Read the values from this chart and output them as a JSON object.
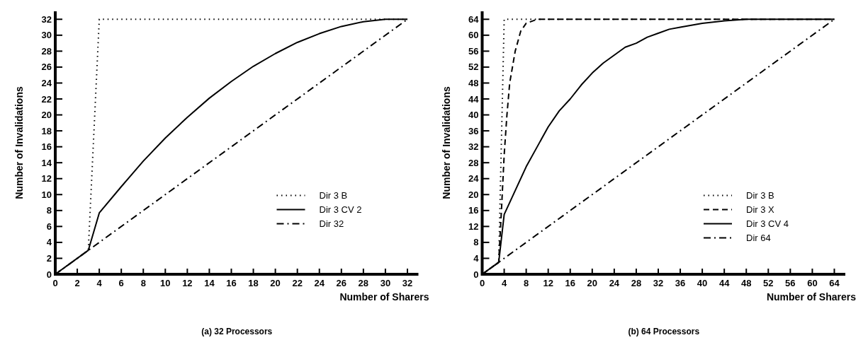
{
  "chart_data": [
    {
      "type": "line",
      "title": "(a) 32 Processors",
      "xlabel": "Number of Sharers",
      "ylabel": "Number of Invalidations",
      "xlim": [
        0,
        33
      ],
      "ylim": [
        0,
        33
      ],
      "xticks": [
        0,
        2,
        4,
        6,
        8,
        10,
        12,
        14,
        16,
        18,
        20,
        22,
        24,
        26,
        28,
        30,
        32
      ],
      "yticks": [
        0,
        2,
        4,
        6,
        8,
        10,
        12,
        14,
        16,
        18,
        20,
        22,
        24,
        26,
        28,
        30,
        32
      ],
      "grid": false,
      "legend": "right",
      "series": [
        {
          "name": "Dir 3 B",
          "color": "#000000",
          "line_style": "dotted",
          "x": [
            0,
            3,
            4,
            32
          ],
          "values": [
            0,
            3,
            32,
            32
          ]
        },
        {
          "name": "Dir 3 CV 2",
          "color": "#000000",
          "line_style": "solid",
          "x": [
            0,
            3,
            4,
            6,
            8,
            10,
            12,
            14,
            16,
            18,
            20,
            22,
            24,
            26,
            28,
            30,
            32
          ],
          "values": [
            0,
            3,
            7.7,
            11,
            14.2,
            17.1,
            19.7,
            22.1,
            24.2,
            26.1,
            27.7,
            29.1,
            30.2,
            31.1,
            31.7,
            32,
            32
          ]
        },
        {
          "name": "Dir 32",
          "color": "#000000",
          "line_style": "dashdot",
          "x": [
            0,
            32
          ],
          "values": [
            0,
            32
          ]
        }
      ]
    },
    {
      "type": "line",
      "title": "(b) 64 Processors",
      "xlabel": "Number of Sharers",
      "ylabel": "Number of Invalidations",
      "xlim": [
        0,
        66
      ],
      "ylim": [
        0,
        66
      ],
      "xticks": [
        0,
        4,
        8,
        12,
        16,
        20,
        24,
        28,
        32,
        36,
        40,
        44,
        48,
        52,
        56,
        60,
        64
      ],
      "yticks": [
        0,
        4,
        8,
        12,
        16,
        20,
        24,
        28,
        32,
        36,
        40,
        44,
        48,
        52,
        56,
        60,
        64
      ],
      "grid": false,
      "legend": "right",
      "series": [
        {
          "name": "Dir 3 B",
          "color": "#000000",
          "line_style": "dotted",
          "x": [
            0,
            3,
            4,
            64
          ],
          "values": [
            0,
            3,
            64,
            64
          ]
        },
        {
          "name": "Dir 3 X",
          "color": "#000000",
          "line_style": "dashed",
          "x": [
            0,
            3,
            3.5,
            4,
            4.5,
            5,
            6,
            7,
            8,
            10,
            64
          ],
          "values": [
            0,
            3,
            16,
            30,
            40,
            48,
            56,
            61,
            63,
            64,
            64
          ]
        },
        {
          "name": "Dir 3 CV 4",
          "color": "#000000",
          "line_style": "solid",
          "x": [
            0,
            3,
            4,
            6,
            8,
            10,
            12,
            14,
            16,
            18,
            20,
            22,
            24,
            26,
            28,
            30,
            32,
            34,
            36,
            40,
            44,
            48,
            64
          ],
          "values": [
            0,
            3,
            15,
            21,
            27,
            32,
            37,
            41,
            44,
            47.5,
            50.5,
            53,
            55,
            57,
            58,
            59.5,
            60.5,
            61.5,
            62,
            63,
            63.6,
            64,
            64
          ]
        },
        {
          "name": "Dir 64",
          "color": "#000000",
          "line_style": "dashdot",
          "x": [
            0,
            64
          ],
          "values": [
            0,
            64
          ]
        }
      ]
    }
  ]
}
